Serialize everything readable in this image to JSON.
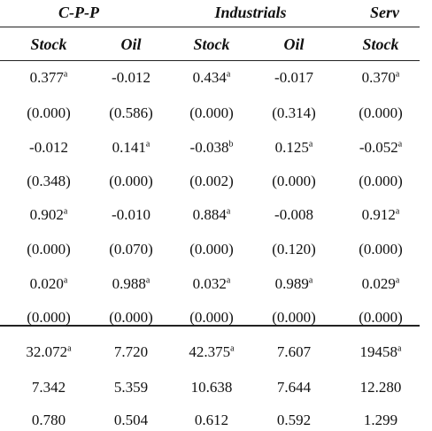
{
  "groups": {
    "cpp": "C-P-P",
    "industrials": "Industrials",
    "services": "Serv"
  },
  "subheaders": [
    "Stock",
    "Oil",
    "Stock",
    "Oil",
    "Stock"
  ],
  "rows": [
    [
      {
        "v": "0.377",
        "s": "a"
      },
      {
        "v": "-0.012",
        "s": ""
      },
      {
        "v": "0.434",
        "s": "a"
      },
      {
        "v": "-0.017",
        "s": ""
      },
      {
        "v": "0.370",
        "s": "a"
      }
    ],
    [
      {
        "v": "(0.000)",
        "s": ""
      },
      {
        "v": "(0.586)",
        "s": ""
      },
      {
        "v": "(0.000)",
        "s": ""
      },
      {
        "v": "(0.314)",
        "s": ""
      },
      {
        "v": "(0.000)",
        "s": ""
      }
    ],
    [
      {
        "v": "-0.012",
        "s": ""
      },
      {
        "v": "0.141",
        "s": "a"
      },
      {
        "v": "-0.038",
        "s": "b"
      },
      {
        "v": "0.125",
        "s": "a"
      },
      {
        "v": "-0.052",
        "s": "a"
      }
    ],
    [
      {
        "v": "(0.348)",
        "s": ""
      },
      {
        "v": "(0.000)",
        "s": ""
      },
      {
        "v": "(0.002)",
        "s": ""
      },
      {
        "v": "(0.000)",
        "s": ""
      },
      {
        "v": "(0.000)",
        "s": ""
      }
    ],
    [
      {
        "v": "0.902",
        "s": "a"
      },
      {
        "v": "-0.010",
        "s": ""
      },
      {
        "v": "0.884",
        "s": "a"
      },
      {
        "v": "-0.008",
        "s": ""
      },
      {
        "v": "0.912",
        "s": "a"
      }
    ],
    [
      {
        "v": "(0.000)",
        "s": ""
      },
      {
        "v": "(0.070)",
        "s": ""
      },
      {
        "v": "(0.000)",
        "s": ""
      },
      {
        "v": "(0.120)",
        "s": ""
      },
      {
        "v": "(0.000)",
        "s": ""
      }
    ],
    [
      {
        "v": "0.020",
        "s": "a"
      },
      {
        "v": "0.988",
        "s": "a"
      },
      {
        "v": "0.032",
        "s": "a"
      },
      {
        "v": "0.989",
        "s": "a"
      },
      {
        "v": "0.029",
        "s": "a"
      }
    ],
    [
      {
        "v": "(0.000)",
        "s": ""
      },
      {
        "v": "(0.000)",
        "s": ""
      },
      {
        "v": "(0.000)",
        "s": ""
      },
      {
        "v": "(0.000)",
        "s": ""
      },
      {
        "v": "(0.000)",
        "s": ""
      }
    ],
    [
      {
        "v": "32.072",
        "s": "a"
      },
      {
        "v": "7.720",
        "s": ""
      },
      {
        "v": "42.375",
        "s": "a"
      },
      {
        "v": "7.607",
        "s": ""
      },
      {
        "v": "19458",
        "s": "a"
      }
    ],
    [
      {
        "v": "7.342",
        "s": ""
      },
      {
        "v": "5.359",
        "s": ""
      },
      {
        "v": "10.638",
        "s": ""
      },
      {
        "v": "7.644",
        "s": ""
      },
      {
        "v": "12.280",
        "s": ""
      }
    ],
    [
      {
        "v": "0.780",
        "s": ""
      },
      {
        "v": "0.504",
        "s": ""
      },
      {
        "v": "0.612",
        "s": ""
      },
      {
        "v": "0.592",
        "s": ""
      },
      {
        "v": "1.299",
        "s": ""
      }
    ]
  ]
}
